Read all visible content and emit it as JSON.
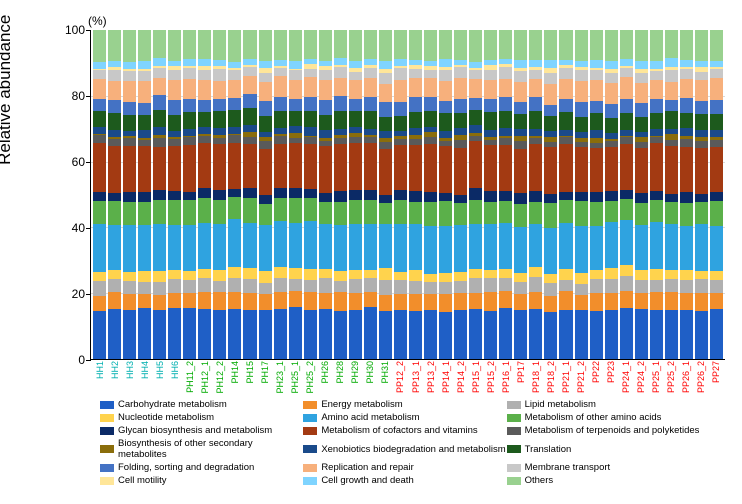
{
  "chart": {
    "type": "stacked-bar",
    "y_axis_label": "Relative abundance",
    "pct_label": "(%)",
    "ylim": [
      0,
      100
    ],
    "ytick_step": 20,
    "yticks": [
      0,
      20,
      40,
      60,
      80,
      100
    ],
    "background_color": "#ffffff",
    "grid_color": "#d9d9d9",
    "axis_fontsize": 12,
    "label_fontsize": 17,
    "xlabel_fontsize": 9,
    "legend_fontsize": 9.5,
    "categories": [
      {
        "name": "Carbohydrate metabolism",
        "color": "#1f5fc6"
      },
      {
        "name": "Energy metabolism",
        "color": "#f28e2b"
      },
      {
        "name": "Lipid metabolism",
        "color": "#b0b0b0"
      },
      {
        "name": "Nucleotide metabolism",
        "color": "#ffd34d"
      },
      {
        "name": "Amino acid metabolism",
        "color": "#2fa3e0"
      },
      {
        "name": "Metabolism of other amino acids",
        "color": "#5bb04a"
      },
      {
        "name": "Glycan biosynthesis and metabolism",
        "color": "#0b2a66"
      },
      {
        "name": "Metabolism of cofactors and vitamins",
        "color": "#a33a12"
      },
      {
        "name": "Metabolism of terpenoids and polyketides",
        "color": "#5a5a5a"
      },
      {
        "name": "Biosynthesis of other secondary metabolites",
        "color": "#8a6d0b"
      },
      {
        "name": "Xenobiotics biodegradation and metabolism",
        "color": "#1a4a8a"
      },
      {
        "name": "Translation",
        "color": "#1d5a1d"
      },
      {
        "name": "Folding, sorting and degradation",
        "color": "#4472c4"
      },
      {
        "name": "Replication and repair",
        "color": "#f7b07c"
      },
      {
        "name": "Membrane transport",
        "color": "#c8c8c8"
      },
      {
        "name": "Cell motility",
        "color": "#ffe699"
      },
      {
        "name": "Cell growth and death",
        "color": "#7fd4ff"
      },
      {
        "name": "Others",
        "color": "#99d18f"
      }
    ],
    "samples": [
      {
        "label": "HH1",
        "color": "#00b0b0"
      },
      {
        "label": "HH2",
        "color": "#00b0b0"
      },
      {
        "label": "HH3",
        "color": "#00b0b0"
      },
      {
        "label": "HH4",
        "color": "#00b0b0"
      },
      {
        "label": "HH5",
        "color": "#00b0b0"
      },
      {
        "label": "HH6",
        "color": "#00b0b0"
      },
      {
        "label": "PH11_2",
        "color": "#00aa00"
      },
      {
        "label": "PH12_1",
        "color": "#00aa00"
      },
      {
        "label": "PH12_2",
        "color": "#00aa00"
      },
      {
        "label": "PH14",
        "color": "#00aa00"
      },
      {
        "label": "PH15",
        "color": "#00aa00"
      },
      {
        "label": "PH17",
        "color": "#00aa00"
      },
      {
        "label": "PH23_1",
        "color": "#00aa00"
      },
      {
        "label": "PH25_1",
        "color": "#00aa00"
      },
      {
        "label": "PH25_2",
        "color": "#00aa00"
      },
      {
        "label": "PH26",
        "color": "#00aa00"
      },
      {
        "label": "PH28",
        "color": "#00aa00"
      },
      {
        "label": "PH29",
        "color": "#00aa00"
      },
      {
        "label": "PH30",
        "color": "#00aa00"
      },
      {
        "label": "PH31",
        "color": "#00aa00"
      },
      {
        "label": "PP12_2",
        "color": "#ff0000"
      },
      {
        "label": "PP13_1",
        "color": "#ff0000"
      },
      {
        "label": "PP13_2",
        "color": "#ff0000"
      },
      {
        "label": "PP14_1",
        "color": "#ff0000"
      },
      {
        "label": "PP14_2",
        "color": "#ff0000"
      },
      {
        "label": "PP15_1",
        "color": "#ff0000"
      },
      {
        "label": "PP15_2",
        "color": "#ff0000"
      },
      {
        "label": "PP16_1",
        "color": "#ff0000"
      },
      {
        "label": "PP17",
        "color": "#ff0000"
      },
      {
        "label": "PP18_1",
        "color": "#ff0000"
      },
      {
        "label": "PP18_2",
        "color": "#ff0000"
      },
      {
        "label": "PP21_1",
        "color": "#ff0000"
      },
      {
        "label": "PP21_2",
        "color": "#ff0000"
      },
      {
        "label": "PP22",
        "color": "#ff0000"
      },
      {
        "label": "PP23",
        "color": "#ff0000"
      },
      {
        "label": "PP24_1",
        "color": "#ff0000"
      },
      {
        "label": "PP24_2",
        "color": "#ff0000"
      },
      {
        "label": "PP25_1",
        "color": "#ff0000"
      },
      {
        "label": "PP25_2",
        "color": "#ff0000"
      },
      {
        "label": "PP26_1",
        "color": "#ff0000"
      },
      {
        "label": "PP26_2",
        "color": "#ff0000"
      },
      {
        "label": "PP27",
        "color": "#ff0000"
      }
    ],
    "series_template": [
      15,
      5,
      4,
      3,
      14,
      7,
      3,
      14,
      2,
      1,
      2,
      5,
      4,
      6,
      3,
      1,
      2,
      9
    ],
    "variation": 0.6
  }
}
